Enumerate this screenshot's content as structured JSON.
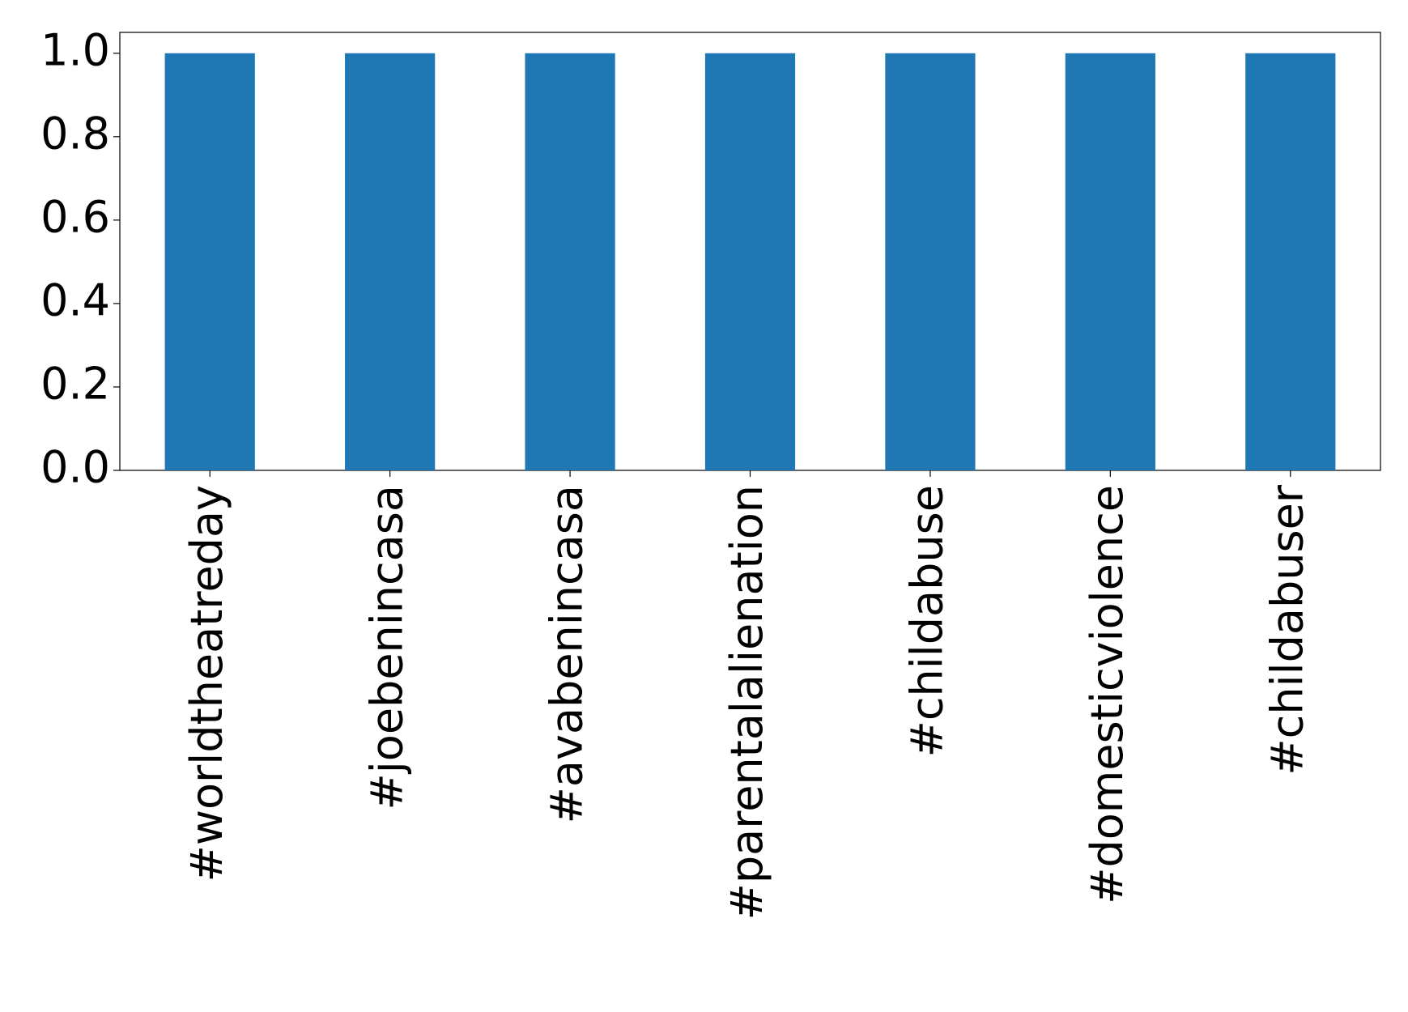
{
  "chart_data": {
    "type": "bar",
    "categories": [
      "#worldtheatreday",
      "#joebenincasa",
      "#avabenincasa",
      "#parentalalienation",
      "#childabuse",
      "#domesticviolence",
      "#childabuser"
    ],
    "values": [
      1,
      1,
      1,
      1,
      1,
      1,
      1
    ],
    "color": "#1f77b4",
    "ylim": [
      0,
      1.05
    ],
    "yticks": [
      {
        "value": 0,
        "label": "0.0"
      },
      {
        "value": 0.2,
        "label": "0.2"
      },
      {
        "value": 0.4,
        "label": "0.4"
      },
      {
        "value": 0.6,
        "label": "0.6"
      },
      {
        "value": 0.8,
        "label": "0.8"
      },
      {
        "value": 1,
        "label": "1.0"
      }
    ],
    "grid": false
  }
}
